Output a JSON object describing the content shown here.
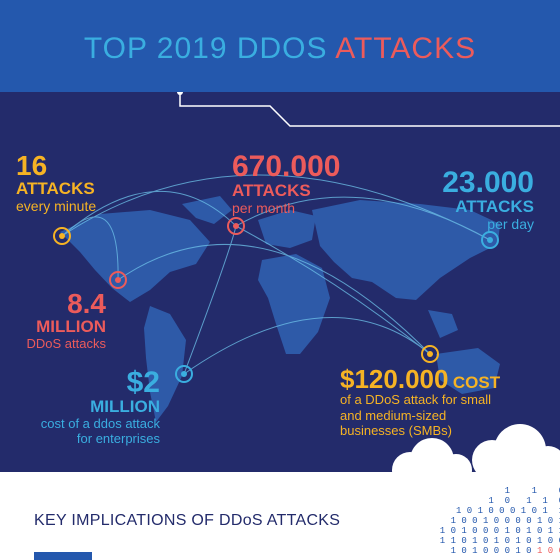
{
  "title": {
    "part1": "TOP 2019 DDOS",
    "part2": "ATTACKS"
  },
  "stats": {
    "per_minute": {
      "value": "16",
      "unit": "ATTACKS",
      "desc": "every minute"
    },
    "per_month": {
      "value": "670.000",
      "unit": "ATTACKS",
      "desc": "per month"
    },
    "per_day": {
      "value": "23.000",
      "unit": "ATTACKS",
      "desc": "per day"
    },
    "ddos_count": {
      "value": "8.4",
      "unit": "MILLION",
      "desc": "DDoS attacks"
    },
    "enterprise_cost": {
      "value": "$2",
      "unit": "MILLION",
      "desc_line1": "cost of a ddos attack",
      "desc_line2": "for enterprises"
    },
    "smb_cost": {
      "value": "$120.000",
      "unit": "COST",
      "desc_line1": "of a DDoS attack for small",
      "desc_line2": "and medium-sized",
      "desc_line3": "businesses (SMBs)"
    }
  },
  "footer": {
    "heading": "KEY IMPLICATIONS OF DDoS ATTACKS"
  },
  "colors": {
    "navy": "#232b6b",
    "blue": "#2458ad",
    "cyan": "#3aaee0",
    "red": "#ec5b5b",
    "yellow": "#f6b324"
  },
  "icons": [
    "target-icon",
    "cloud-icon",
    "circuit-line"
  ]
}
